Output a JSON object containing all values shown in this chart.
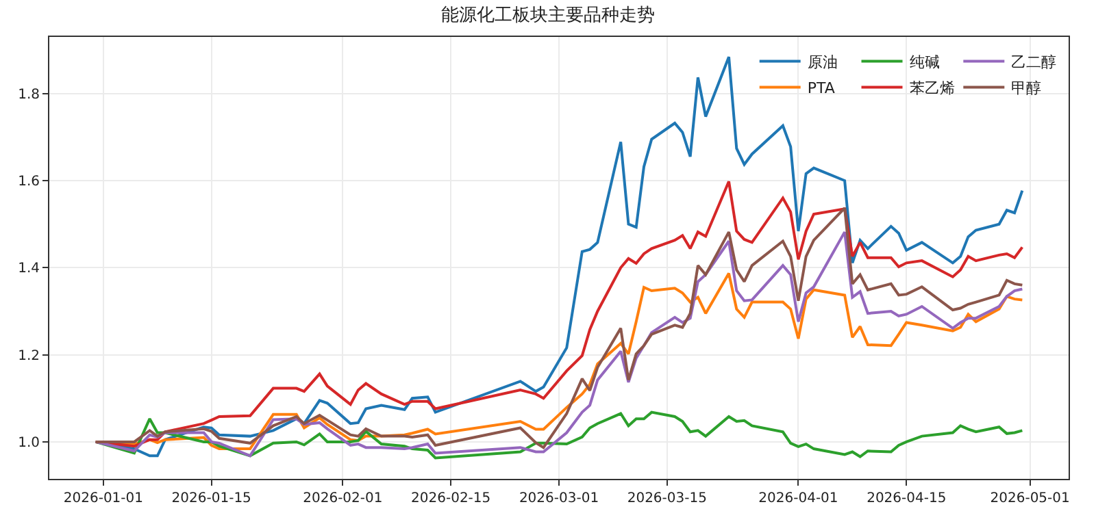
{
  "chart_data": {
    "type": "line",
    "title": "能源化工板块主要品种走势",
    "x": [
      "2025-12-31",
      "2026-01-05",
      "2026-01-07",
      "2026-01-08",
      "2026-01-09",
      "2026-01-14",
      "2026-01-15",
      "2026-01-16",
      "2026-01-20",
      "2026-01-23",
      "2026-01-26",
      "2026-01-27",
      "2026-01-29",
      "2026-01-30",
      "2026-02-02",
      "2026-02-03",
      "2026-02-04",
      "2026-02-06",
      "2026-02-09",
      "2026-02-10",
      "2026-02-12",
      "2026-02-13",
      "2026-02-24",
      "2026-02-26",
      "2026-02-27",
      "2026-03-02",
      "2026-03-04",
      "2026-03-05",
      "2026-03-06",
      "2026-03-09",
      "2026-03-10",
      "2026-03-11",
      "2026-03-12",
      "2026-03-13",
      "2026-03-16",
      "2026-03-17",
      "2026-03-18",
      "2026-03-19",
      "2026-03-20",
      "2026-03-23",
      "2026-03-24",
      "2026-03-25",
      "2026-03-26",
      "2026-03-30",
      "2026-03-31",
      "2026-04-01",
      "2026-04-02",
      "2026-04-03",
      "2026-04-07",
      "2026-04-08",
      "2026-04-09",
      "2026-04-10",
      "2026-04-13",
      "2026-04-14",
      "2026-04-15",
      "2026-04-17",
      "2026-04-21",
      "2026-04-22",
      "2026-04-23",
      "2026-04-24",
      "2026-04-27",
      "2026-04-28",
      "2026-04-29",
      "2026-04-30"
    ],
    "series": [
      {
        "name": "原油",
        "color": "#1f77b4",
        "values": [
          1.0,
          0.984,
          0.968,
          0.968,
          1.005,
          1.034,
          1.032,
          1.016,
          1.013,
          1.026,
          1.053,
          1.042,
          1.095,
          1.089,
          1.042,
          1.044,
          1.076,
          1.084,
          1.074,
          1.1,
          1.103,
          1.068,
          1.139,
          1.116,
          1.126,
          1.216,
          1.437,
          1.442,
          1.458,
          1.689,
          1.5,
          1.493,
          1.632,
          1.695,
          1.732,
          1.711,
          1.655,
          1.837,
          1.747,
          1.884,
          1.674,
          1.637,
          1.661,
          1.726,
          1.678,
          1.484,
          1.616,
          1.629,
          1.6,
          1.411,
          1.463,
          1.444,
          1.495,
          1.479,
          1.44,
          1.458,
          1.411,
          1.426,
          1.471,
          1.486,
          1.5,
          1.532,
          1.526,
          1.577
        ]
      },
      {
        "name": "PTA",
        "color": "#ff7f0e",
        "values": [
          1.0,
          0.995,
          1.005,
          0.998,
          1.005,
          1.01,
          0.992,
          0.984,
          0.984,
          1.063,
          1.063,
          1.032,
          1.055,
          1.04,
          1.005,
          1.003,
          1.013,
          1.013,
          1.016,
          1.02,
          1.029,
          1.018,
          1.047,
          1.029,
          1.029,
          1.079,
          1.11,
          1.132,
          1.179,
          1.226,
          1.202,
          1.276,
          1.355,
          1.347,
          1.353,
          1.342,
          1.321,
          1.332,
          1.295,
          1.387,
          1.305,
          1.286,
          1.321,
          1.321,
          1.305,
          1.237,
          1.328,
          1.349,
          1.337,
          1.24,
          1.265,
          1.223,
          1.221,
          1.247,
          1.274,
          1.268,
          1.255,
          1.263,
          1.293,
          1.276,
          1.305,
          1.334,
          1.328,
          1.326
        ]
      },
      {
        "name": "纯碱",
        "color": "#2ca02c",
        "values": [
          1.0,
          0.974,
          1.053,
          1.021,
          1.021,
          1.0,
          1.0,
          0.99,
          0.968,
          0.997,
          1.0,
          0.993,
          1.018,
          1.0,
          1.0,
          1.003,
          1.024,
          0.995,
          0.99,
          0.984,
          0.981,
          0.963,
          0.977,
          0.997,
          0.997,
          0.995,
          1.011,
          1.032,
          1.042,
          1.065,
          1.037,
          1.053,
          1.053,
          1.068,
          1.058,
          1.047,
          1.023,
          1.026,
          1.013,
          1.058,
          1.047,
          1.049,
          1.037,
          1.023,
          0.997,
          0.989,
          0.995,
          0.984,
          0.971,
          0.977,
          0.966,
          0.979,
          0.977,
          0.992,
          1.0,
          1.013,
          1.021,
          1.037,
          1.029,
          1.023,
          1.034,
          1.019,
          1.021,
          1.026
        ]
      },
      {
        "name": "苯乙烯",
        "color": "#d62728",
        "values": [
          1.0,
          0.99,
          1.005,
          1.005,
          1.023,
          1.042,
          1.05,
          1.058,
          1.06,
          1.123,
          1.123,
          1.116,
          1.156,
          1.128,
          1.086,
          1.119,
          1.134,
          1.11,
          1.086,
          1.093,
          1.093,
          1.076,
          1.119,
          1.11,
          1.1,
          1.163,
          1.198,
          1.258,
          1.3,
          1.4,
          1.421,
          1.41,
          1.432,
          1.444,
          1.463,
          1.474,
          1.444,
          1.482,
          1.472,
          1.598,
          1.484,
          1.465,
          1.458,
          1.56,
          1.528,
          1.419,
          1.484,
          1.523,
          1.535,
          1.426,
          1.458,
          1.423,
          1.423,
          1.402,
          1.411,
          1.416,
          1.379,
          1.395,
          1.426,
          1.416,
          1.429,
          1.432,
          1.423,
          1.447
        ]
      },
      {
        "name": "乙二醇",
        "color": "#9467bd",
        "values": [
          1.0,
          0.979,
          1.016,
          1.011,
          1.021,
          1.021,
          1.0,
          0.997,
          0.968,
          1.051,
          1.053,
          1.04,
          1.044,
          1.03,
          0.992,
          0.995,
          0.987,
          0.987,
          0.984,
          0.987,
          0.995,
          0.974,
          0.987,
          0.977,
          0.977,
          1.021,
          1.068,
          1.084,
          1.142,
          1.208,
          1.137,
          1.192,
          1.221,
          1.251,
          1.286,
          1.274,
          1.284,
          1.368,
          1.384,
          1.461,
          1.347,
          1.324,
          1.326,
          1.405,
          1.384,
          1.276,
          1.342,
          1.356,
          1.482,
          1.332,
          1.345,
          1.295,
          1.3,
          1.289,
          1.293,
          1.311,
          1.261,
          1.274,
          1.284,
          1.284,
          1.311,
          1.334,
          1.347,
          1.351
        ]
      },
      {
        "name": "甲醇",
        "color": "#8c564b",
        "values": [
          1.0,
          1.0,
          1.026,
          1.013,
          1.023,
          1.03,
          1.024,
          1.008,
          0.997,
          1.037,
          1.058,
          1.042,
          1.061,
          1.05,
          1.016,
          1.013,
          1.03,
          1.013,
          1.013,
          1.011,
          1.016,
          0.992,
          1.032,
          0.998,
          0.987,
          1.065,
          1.145,
          1.118,
          1.171,
          1.261,
          1.142,
          1.202,
          1.221,
          1.247,
          1.268,
          1.263,
          1.295,
          1.405,
          1.384,
          1.482,
          1.395,
          1.368,
          1.405,
          1.461,
          1.426,
          1.324,
          1.426,
          1.463,
          1.537,
          1.363,
          1.384,
          1.349,
          1.363,
          1.337,
          1.339,
          1.356,
          1.303,
          1.307,
          1.316,
          1.321,
          1.337,
          1.371,
          1.363,
          1.36
        ]
      }
    ],
    "xlim": [
      "2025-12-25",
      "2026-05-06"
    ],
    "xticks": [
      {
        "value": "2026-01-01",
        "label": "2026-01-01"
      },
      {
        "value": "2026-01-15",
        "label": "2026-01-15"
      },
      {
        "value": "2026-02-01",
        "label": "2026-02-01"
      },
      {
        "value": "2026-02-15",
        "label": "2026-02-15"
      },
      {
        "value": "2026-03-01",
        "label": "2026-03-01"
      },
      {
        "value": "2026-03-15",
        "label": "2026-03-15"
      },
      {
        "value": "2026-04-01",
        "label": "2026-04-01"
      },
      {
        "value": "2026-04-15",
        "label": "2026-04-15"
      },
      {
        "value": "2026-05-01",
        "label": "2026-05-01"
      }
    ],
    "ylim": [
      0.915,
      1.93
    ],
    "yticks": [
      {
        "value": 1.0,
        "label": "1.0"
      },
      {
        "value": 1.2,
        "label": "1.2"
      },
      {
        "value": 1.4,
        "label": "1.4"
      },
      {
        "value": 1.6,
        "label": "1.6"
      },
      {
        "value": 1.8,
        "label": "1.8"
      }
    ],
    "grid": true,
    "legend": "top right",
    "marker": "none",
    "line_style": "solid"
  }
}
